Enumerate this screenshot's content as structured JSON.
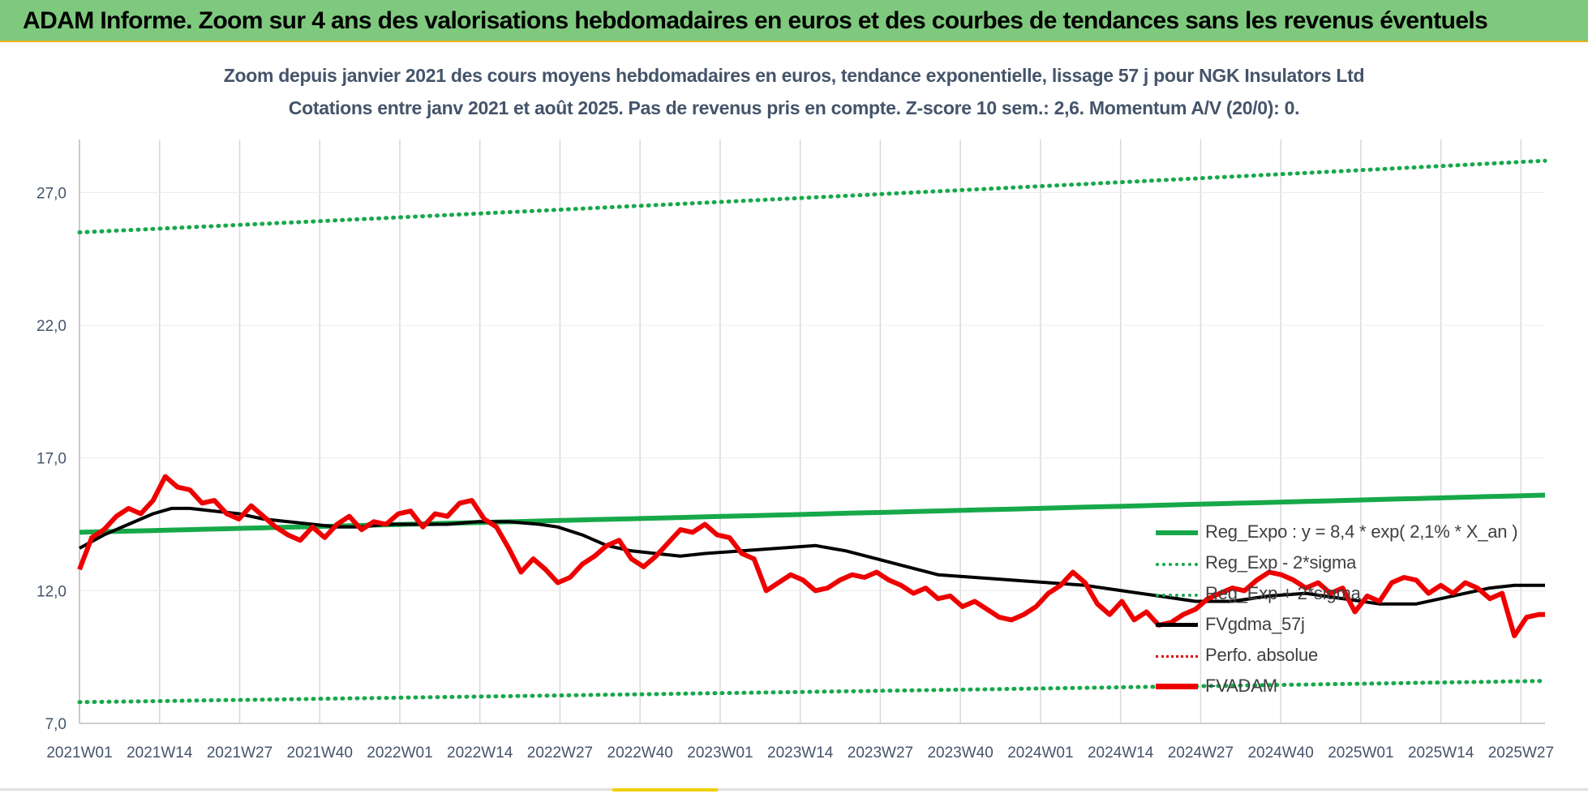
{
  "banner": {
    "title": "ADAM Informe. Zoom sur 4 ans des valorisations hebdomadaires en euros et des courbes de tendances sans les revenus éventuels"
  },
  "chart_data": {
    "type": "line",
    "title": "Zoom depuis janvier 2021 des cours moyens hebdomadaires en euros, tendance exponentielle, lissage 57 j pour NGK Insulators Ltd",
    "subtitle": "Cotations entre janv 2021 et août 2025.  Pas de revenus pris en compte. Z-score 10 sem.: 2,6. Momentum A/V (20/0): 0.",
    "xlabel": "",
    "ylabel": "",
    "ylim": [
      7.0,
      29.0
    ],
    "yticks": [
      "7,0",
      "12,0",
      "17,0",
      "22,0",
      "27,0"
    ],
    "ytick_values": [
      7,
      12,
      17,
      22,
      27
    ],
    "xticks": [
      "2021W01",
      "2021W14",
      "2021W27",
      "2021W40",
      "2022W01",
      "2022W14",
      "2022W27",
      "2022W40",
      "2023W01",
      "2023W14",
      "2023W27",
      "2023W40",
      "2024W01",
      "2024W14",
      "2024W27",
      "2024W40",
      "2025W01",
      "2025W14",
      "2025W27"
    ],
    "x_range_weeks": [
      0,
      239
    ],
    "grid": "vertical",
    "legend_position": "bottom-right",
    "series": [
      {
        "name": "Reg_Expo : y = 8,4 * exp( 2,1% *  X_an )",
        "style": "solid-thick",
        "color": "#17a84a",
        "start": 14.2,
        "end": 15.6
      },
      {
        "name": "Reg_Exp - 2*sigma",
        "style": "dotted",
        "color": "#17a84a",
        "start": 7.8,
        "end": 8.6
      },
      {
        "name": "Reg_Exp + 2*sigma",
        "style": "dotted",
        "color": "#17a84a",
        "start": 25.5,
        "end": 28.2
      },
      {
        "name": "FVgdma_57j",
        "style": "solid",
        "color": "#000000",
        "points": [
          [
            0,
            13.6
          ],
          [
            4,
            14.1
          ],
          [
            8,
            14.5
          ],
          [
            12,
            14.9
          ],
          [
            15,
            15.1
          ],
          [
            18,
            15.1
          ],
          [
            22,
            15.0
          ],
          [
            26,
            14.9
          ],
          [
            30,
            14.7
          ],
          [
            34,
            14.6
          ],
          [
            38,
            14.5
          ],
          [
            42,
            14.4
          ],
          [
            46,
            14.4
          ],
          [
            50,
            14.5
          ],
          [
            55,
            14.5
          ],
          [
            60,
            14.5
          ],
          [
            65,
            14.6
          ],
          [
            70,
            14.6
          ],
          [
            75,
            14.5
          ],
          [
            78,
            14.4
          ],
          [
            82,
            14.1
          ],
          [
            86,
            13.7
          ],
          [
            90,
            13.5
          ],
          [
            94,
            13.4
          ],
          [
            98,
            13.3
          ],
          [
            102,
            13.4
          ],
          [
            108,
            13.5
          ],
          [
            114,
            13.6
          ],
          [
            120,
            13.7
          ],
          [
            125,
            13.5
          ],
          [
            130,
            13.2
          ],
          [
            135,
            12.9
          ],
          [
            140,
            12.6
          ],
          [
            146,
            12.5
          ],
          [
            152,
            12.4
          ],
          [
            158,
            12.3
          ],
          [
            164,
            12.2
          ],
          [
            170,
            12.0
          ],
          [
            176,
            11.8
          ],
          [
            182,
            11.6
          ],
          [
            188,
            11.6
          ],
          [
            194,
            11.8
          ],
          [
            200,
            11.9
          ],
          [
            206,
            11.7
          ],
          [
            212,
            11.5
          ],
          [
            218,
            11.5
          ],
          [
            222,
            11.7
          ],
          [
            226,
            11.9
          ],
          [
            230,
            12.1
          ],
          [
            234,
            12.2
          ],
          [
            238,
            12.2
          ],
          [
            239,
            12.2
          ]
        ],
        "note_units": "x = weeks since 2021W01"
      },
      {
        "name": "Perfo. absolue",
        "style": "dotted",
        "color": "#e00000",
        "points": []
      },
      {
        "name": "FVADAM",
        "style": "solid-thick",
        "color": "#ee0000",
        "points": [
          [
            0,
            12.8
          ],
          [
            2,
            14.0
          ],
          [
            4,
            14.3
          ],
          [
            6,
            14.8
          ],
          [
            8,
            15.1
          ],
          [
            10,
            14.9
          ],
          [
            12,
            15.4
          ],
          [
            14,
            16.3
          ],
          [
            16,
            15.9
          ],
          [
            18,
            15.8
          ],
          [
            20,
            15.3
          ],
          [
            22,
            15.4
          ],
          [
            24,
            14.9
          ],
          [
            26,
            14.7
          ],
          [
            28,
            15.2
          ],
          [
            30,
            14.8
          ],
          [
            32,
            14.4
          ],
          [
            34,
            14.1
          ],
          [
            36,
            13.9
          ],
          [
            38,
            14.4
          ],
          [
            40,
            14.0
          ],
          [
            42,
            14.5
          ],
          [
            44,
            14.8
          ],
          [
            46,
            14.3
          ],
          [
            48,
            14.6
          ],
          [
            50,
            14.5
          ],
          [
            52,
            14.9
          ],
          [
            54,
            15.0
          ],
          [
            56,
            14.4
          ],
          [
            58,
            14.9
          ],
          [
            60,
            14.8
          ],
          [
            62,
            15.3
          ],
          [
            64,
            15.4
          ],
          [
            66,
            14.7
          ],
          [
            68,
            14.4
          ],
          [
            70,
            13.6
          ],
          [
            72,
            12.7
          ],
          [
            74,
            13.2
          ],
          [
            76,
            12.8
          ],
          [
            78,
            12.3
          ],
          [
            80,
            12.5
          ],
          [
            82,
            13.0
          ],
          [
            84,
            13.3
          ],
          [
            86,
            13.7
          ],
          [
            88,
            13.9
          ],
          [
            90,
            13.2
          ],
          [
            92,
            12.9
          ],
          [
            94,
            13.3
          ],
          [
            96,
            13.8
          ],
          [
            98,
            14.3
          ],
          [
            100,
            14.2
          ],
          [
            102,
            14.5
          ],
          [
            104,
            14.1
          ],
          [
            106,
            14.0
          ],
          [
            108,
            13.4
          ],
          [
            110,
            13.2
          ],
          [
            112,
            12.0
          ],
          [
            114,
            12.3
          ],
          [
            116,
            12.6
          ],
          [
            118,
            12.4
          ],
          [
            120,
            12.0
          ],
          [
            122,
            12.1
          ],
          [
            124,
            12.4
          ],
          [
            126,
            12.6
          ],
          [
            128,
            12.5
          ],
          [
            130,
            12.7
          ],
          [
            132,
            12.4
          ],
          [
            134,
            12.2
          ],
          [
            136,
            11.9
          ],
          [
            138,
            12.1
          ],
          [
            140,
            11.7
          ],
          [
            142,
            11.8
          ],
          [
            144,
            11.4
          ],
          [
            146,
            11.6
          ],
          [
            148,
            11.3
          ],
          [
            150,
            11.0
          ],
          [
            152,
            10.9
          ],
          [
            154,
            11.1
          ],
          [
            156,
            11.4
          ],
          [
            158,
            11.9
          ],
          [
            160,
            12.2
          ],
          [
            162,
            12.7
          ],
          [
            164,
            12.3
          ],
          [
            166,
            11.5
          ],
          [
            168,
            11.1
          ],
          [
            170,
            11.6
          ],
          [
            172,
            10.9
          ],
          [
            174,
            11.2
          ],
          [
            176,
            10.7
          ],
          [
            178,
            10.8
          ],
          [
            180,
            11.1
          ],
          [
            182,
            11.3
          ],
          [
            184,
            11.7
          ],
          [
            186,
            11.9
          ],
          [
            188,
            12.1
          ],
          [
            190,
            12.0
          ],
          [
            192,
            12.4
          ],
          [
            194,
            12.7
          ],
          [
            196,
            12.6
          ],
          [
            198,
            12.4
          ],
          [
            200,
            12.1
          ],
          [
            202,
            12.3
          ],
          [
            204,
            11.9
          ],
          [
            206,
            12.1
          ],
          [
            208,
            11.2
          ],
          [
            210,
            11.8
          ],
          [
            212,
            11.6
          ],
          [
            214,
            12.3
          ],
          [
            216,
            12.5
          ],
          [
            218,
            12.4
          ],
          [
            220,
            11.9
          ],
          [
            222,
            12.2
          ],
          [
            224,
            11.9
          ],
          [
            226,
            12.3
          ],
          [
            228,
            12.1
          ],
          [
            230,
            11.7
          ],
          [
            232,
            11.9
          ],
          [
            234,
            10.3
          ],
          [
            236,
            11.0
          ],
          [
            238,
            11.1
          ],
          [
            239,
            11.1
          ]
        ],
        "note_units": "x = weeks since 2021W01"
      }
    ]
  },
  "legend": {
    "items": [
      {
        "label": "Reg_Expo : y = 8,4 * exp( 2,1% *  X_an )"
      },
      {
        "label": "Reg_Exp - 2*sigma"
      },
      {
        "label": "Reg_Exp + 2*sigma"
      },
      {
        "label": "FVgdma_57j"
      },
      {
        "label": "Perfo. absolue"
      },
      {
        "label": "FVADAM"
      }
    ]
  },
  "colors": {
    "banner": "#7ec97e",
    "trend": "#17a84a",
    "smooth": "#000000",
    "price": "#ee0000",
    "text": "#44546a",
    "grid": "#d9d9d9"
  }
}
